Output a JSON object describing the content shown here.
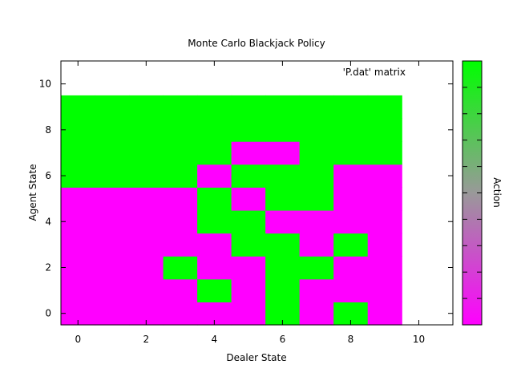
{
  "chart_data": {
    "type": "heatmap",
    "title": "Monte Carlo Blackjack Policy",
    "xlabel": "Dealer State",
    "ylabel": "Agent State",
    "colorbar_label": "Action",
    "legend_entry": "'P.dat' matrix",
    "xlim": [
      -0.5,
      11
    ],
    "ylim": [
      -0.5,
      11
    ],
    "xticks": [
      0,
      2,
      4,
      6,
      8,
      10
    ],
    "yticks": [
      0,
      2,
      4,
      6,
      8,
      10
    ],
    "grid": false,
    "colors": {
      "low": "#ff00ff",
      "mid": "#999999",
      "high": "#00ff00"
    },
    "x": [
      0,
      1,
      2,
      3,
      4,
      5,
      6,
      7,
      8,
      9
    ],
    "y": [
      0,
      1,
      2,
      3,
      4,
      5,
      6,
      7,
      8,
      9
    ],
    "matrix": [
      [
        0,
        0,
        0,
        0,
        0,
        0,
        1,
        0,
        1,
        0
      ],
      [
        0,
        0,
        0,
        0,
        1,
        0,
        1,
        0,
        0,
        0
      ],
      [
        0,
        0,
        0,
        1,
        0,
        0,
        1,
        1,
        0,
        0
      ],
      [
        0,
        0,
        0,
        0,
        0,
        1,
        1,
        0,
        1,
        0
      ],
      [
        0,
        0,
        0,
        0,
        1,
        1,
        0,
        0,
        0,
        0
      ],
      [
        0,
        0,
        0,
        0,
        1,
        0,
        1,
        1,
        0,
        0
      ],
      [
        1,
        1,
        1,
        1,
        0,
        1,
        1,
        1,
        0,
        0
      ],
      [
        1,
        1,
        1,
        1,
        1,
        0,
        0,
        1,
        1,
        1
      ],
      [
        1,
        1,
        1,
        1,
        1,
        1,
        1,
        1,
        1,
        1
      ],
      [
        1,
        1,
        1,
        1,
        1,
        1,
        1,
        1,
        1,
        1
      ]
    ]
  }
}
